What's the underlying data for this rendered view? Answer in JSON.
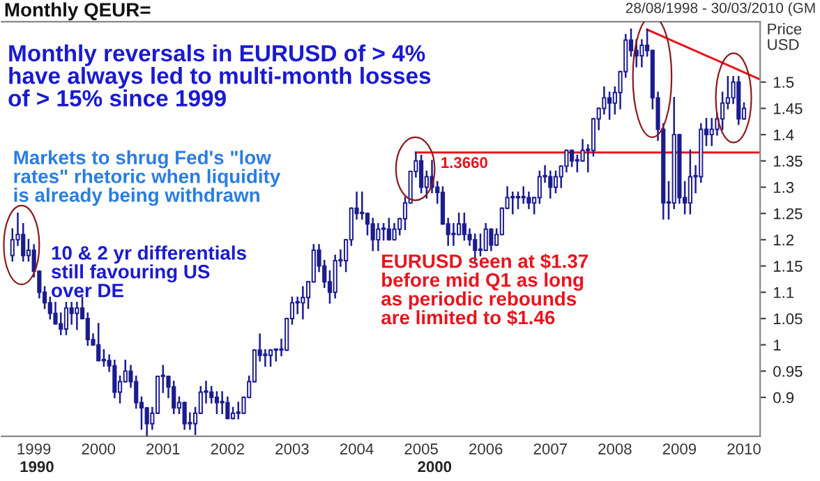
{
  "chart_data": {
    "type": "candlestick",
    "title": "Monthly QEUR=",
    "subtitle": "28/08/1998 - 30/03/2010 (GM",
    "ylabel": "Price\nUSD",
    "annotations": [
      "Monthly reversals in EURUSD of > 4%\nhave always led to multi-month losses\nof > 15% since 1999",
      "Markets to shrug Fed's \"low\nrates\" rhetoric when liquidity\nis already being withdrawn",
      "10 & 2 yr differentials\nstill favouring US\nover DE",
      "EURUSD seen at $1.37\nbefore mid Q1 as long\nas periodic rebounds\nare limited to $1.46",
      {
        "text": "1.3660",
        "x": "2005-09",
        "y": 1.366
      },
      "1990",
      "2000"
    ],
    "color": "#1c1c8f",
    "x": [
      "1998-09",
      "1998-10",
      "1998-11",
      "1998-12",
      "1999-01",
      "1999-02",
      "1999-03",
      "1999-04",
      "1999-05",
      "1999-06",
      "1999-07",
      "1999-08",
      "1999-09",
      "1999-10",
      "1999-11",
      "1999-12",
      "2000-01",
      "2000-02",
      "2000-03",
      "2000-04",
      "2000-05",
      "2000-06",
      "2000-07",
      "2000-08",
      "2000-09",
      "2000-10",
      "2000-11",
      "2000-12",
      "2001-01",
      "2001-02",
      "2001-03",
      "2001-04",
      "2001-05",
      "2001-06",
      "2001-07",
      "2001-08",
      "2001-09",
      "2001-10",
      "2001-11",
      "2001-12",
      "2002-01",
      "2002-02",
      "2002-03",
      "2002-04",
      "2002-05",
      "2002-06",
      "2002-07",
      "2002-08",
      "2002-09",
      "2002-10",
      "2002-11",
      "2002-12",
      "2003-01",
      "2003-02",
      "2003-03",
      "2003-04",
      "2003-05",
      "2003-06",
      "2003-07",
      "2003-08",
      "2003-09",
      "2003-10",
      "2003-11",
      "2003-12",
      "2004-01",
      "2004-02",
      "2004-03",
      "2004-04",
      "2004-05",
      "2004-06",
      "2004-07",
      "2004-08",
      "2004-09",
      "2004-10",
      "2004-11",
      "2004-12",
      "2005-01",
      "2005-02",
      "2005-03",
      "2005-04",
      "2005-05",
      "2005-06",
      "2005-07",
      "2005-08",
      "2005-09",
      "2005-10",
      "2005-11",
      "2005-12",
      "2006-01",
      "2006-02",
      "2006-03",
      "2006-04",
      "2006-05",
      "2006-06",
      "2006-07",
      "2006-08",
      "2006-09",
      "2006-10",
      "2006-11",
      "2006-12",
      "2007-01",
      "2007-02",
      "2007-03",
      "2007-04",
      "2007-05",
      "2007-06",
      "2007-07",
      "2007-08",
      "2007-09",
      "2007-10",
      "2007-11",
      "2007-12",
      "2008-01",
      "2008-02",
      "2008-03",
      "2008-04",
      "2008-05",
      "2008-06",
      "2008-07",
      "2008-08",
      "2008-09",
      "2008-10",
      "2008-11",
      "2008-12",
      "2009-01",
      "2009-02",
      "2009-03",
      "2009-04",
      "2009-05",
      "2009-06",
      "2009-07",
      "2009-08",
      "2009-09",
      "2009-10",
      "2009-11",
      "2009-12",
      "2010-01"
    ],
    "ohlc": [
      [
        1.17,
        1.22,
        1.16,
        1.2
      ],
      [
        1.2,
        1.25,
        1.19,
        1.21
      ],
      [
        1.21,
        1.23,
        1.16,
        1.17
      ],
      [
        1.17,
        1.2,
        1.16,
        1.18
      ],
      [
        1.18,
        1.19,
        1.13,
        1.14
      ],
      [
        1.14,
        1.14,
        1.09,
        1.1
      ],
      [
        1.1,
        1.11,
        1.07,
        1.08
      ],
      [
        1.08,
        1.09,
        1.05,
        1.06
      ],
      [
        1.06,
        1.08,
        1.04,
        1.04
      ],
      [
        1.04,
        1.06,
        1.02,
        1.03
      ],
      [
        1.03,
        1.08,
        1.02,
        1.07
      ],
      [
        1.07,
        1.08,
        1.04,
        1.06
      ],
      [
        1.06,
        1.08,
        1.03,
        1.07
      ],
      [
        1.07,
        1.09,
        1.05,
        1.05
      ],
      [
        1.05,
        1.06,
        1.0,
        1.01
      ],
      [
        1.01,
        1.02,
        1.0,
        1.0
      ],
      [
        1.0,
        1.04,
        0.97,
        0.97
      ],
      [
        0.97,
        0.99,
        0.96,
        0.97
      ],
      [
        0.97,
        0.98,
        0.95,
        0.96
      ],
      [
        0.96,
        0.97,
        0.9,
        0.91
      ],
      [
        0.91,
        0.94,
        0.89,
        0.93
      ],
      [
        0.93,
        0.97,
        0.93,
        0.95
      ],
      [
        0.95,
        0.96,
        0.92,
        0.93
      ],
      [
        0.93,
        0.94,
        0.88,
        0.89
      ],
      [
        0.89,
        0.9,
        0.84,
        0.88
      ],
      [
        0.88,
        0.88,
        0.82,
        0.85
      ],
      [
        0.85,
        0.88,
        0.84,
        0.87
      ],
      [
        0.87,
        0.94,
        0.87,
        0.94
      ],
      [
        0.94,
        0.96,
        0.91,
        0.94
      ],
      [
        0.94,
        0.94,
        0.9,
        0.92
      ],
      [
        0.92,
        0.93,
        0.87,
        0.88
      ],
      [
        0.88,
        0.9,
        0.87,
        0.89
      ],
      [
        0.89,
        0.89,
        0.84,
        0.85
      ],
      [
        0.85,
        0.87,
        0.84,
        0.85
      ],
      [
        0.85,
        0.88,
        0.83,
        0.87
      ],
      [
        0.87,
        0.92,
        0.87,
        0.91
      ],
      [
        0.91,
        0.93,
        0.89,
        0.91
      ],
      [
        0.91,
        0.92,
        0.89,
        0.9
      ],
      [
        0.9,
        0.91,
        0.87,
        0.89
      ],
      [
        0.89,
        0.91,
        0.87,
        0.89
      ],
      [
        0.89,
        0.9,
        0.86,
        0.86
      ],
      [
        0.86,
        0.88,
        0.86,
        0.87
      ],
      [
        0.87,
        0.89,
        0.86,
        0.87
      ],
      [
        0.87,
        0.9,
        0.87,
        0.9
      ],
      [
        0.9,
        0.94,
        0.9,
        0.93
      ],
      [
        0.93,
        0.99,
        0.93,
        0.99
      ],
      [
        0.99,
        1.02,
        0.97,
        0.98
      ],
      [
        0.98,
        0.99,
        0.96,
        0.98
      ],
      [
        0.98,
        0.99,
        0.96,
        0.99
      ],
      [
        0.99,
        0.99,
        0.97,
        0.99
      ],
      [
        0.99,
        1.01,
        0.98,
        0.99
      ],
      [
        0.99,
        1.05,
        0.99,
        1.05
      ],
      [
        1.05,
        1.09,
        1.04,
        1.08
      ],
      [
        1.08,
        1.09,
        1.06,
        1.08
      ],
      [
        1.08,
        1.11,
        1.05,
        1.09
      ],
      [
        1.09,
        1.12,
        1.07,
        1.12
      ],
      [
        1.12,
        1.19,
        1.12,
        1.18
      ],
      [
        1.18,
        1.19,
        1.14,
        1.15
      ],
      [
        1.15,
        1.16,
        1.11,
        1.12
      ],
      [
        1.12,
        1.14,
        1.08,
        1.1
      ],
      [
        1.1,
        1.17,
        1.09,
        1.16
      ],
      [
        1.16,
        1.18,
        1.15,
        1.16
      ],
      [
        1.16,
        1.2,
        1.14,
        1.2
      ],
      [
        1.2,
        1.26,
        1.19,
        1.26
      ],
      [
        1.26,
        1.29,
        1.24,
        1.25
      ],
      [
        1.25,
        1.29,
        1.24,
        1.25
      ],
      [
        1.25,
        1.25,
        1.21,
        1.23
      ],
      [
        1.23,
        1.24,
        1.18,
        1.2
      ],
      [
        1.2,
        1.23,
        1.18,
        1.22
      ],
      [
        1.22,
        1.23,
        1.2,
        1.22
      ],
      [
        1.22,
        1.24,
        1.2,
        1.2
      ],
      [
        1.2,
        1.23,
        1.2,
        1.22
      ],
      [
        1.22,
        1.24,
        1.21,
        1.24
      ],
      [
        1.24,
        1.28,
        1.22,
        1.27
      ],
      [
        1.27,
        1.33,
        1.27,
        1.33
      ],
      [
        1.33,
        1.366,
        1.32,
        1.35
      ],
      [
        1.35,
        1.36,
        1.29,
        1.3
      ],
      [
        1.3,
        1.33,
        1.28,
        1.32
      ],
      [
        1.32,
        1.35,
        1.29,
        1.3
      ],
      [
        1.3,
        1.31,
        1.27,
        1.29
      ],
      [
        1.29,
        1.3,
        1.23,
        1.23
      ],
      [
        1.23,
        1.24,
        1.19,
        1.21
      ],
      [
        1.21,
        1.23,
        1.19,
        1.21
      ],
      [
        1.21,
        1.25,
        1.21,
        1.23
      ],
      [
        1.23,
        1.25,
        1.2,
        1.21
      ],
      [
        1.21,
        1.22,
        1.19,
        1.2
      ],
      [
        1.2,
        1.21,
        1.16,
        1.18
      ],
      [
        1.18,
        1.21,
        1.17,
        1.18
      ],
      [
        1.18,
        1.23,
        1.18,
        1.22
      ],
      [
        1.22,
        1.22,
        1.18,
        1.19
      ],
      [
        1.19,
        1.22,
        1.19,
        1.21
      ],
      [
        1.21,
        1.26,
        1.21,
        1.26
      ],
      [
        1.26,
        1.3,
        1.26,
        1.28
      ],
      [
        1.28,
        1.29,
        1.25,
        1.28
      ],
      [
        1.28,
        1.29,
        1.26,
        1.28
      ],
      [
        1.28,
        1.3,
        1.27,
        1.28
      ],
      [
        1.28,
        1.29,
        1.26,
        1.27
      ],
      [
        1.27,
        1.28,
        1.25,
        1.28
      ],
      [
        1.28,
        1.33,
        1.27,
        1.32
      ],
      [
        1.32,
        1.34,
        1.31,
        1.32
      ],
      [
        1.32,
        1.33,
        1.28,
        1.3
      ],
      [
        1.3,
        1.33,
        1.29,
        1.32
      ],
      [
        1.32,
        1.34,
        1.3,
        1.34
      ],
      [
        1.34,
        1.37,
        1.33,
        1.37
      ],
      [
        1.37,
        1.37,
        1.34,
        1.35
      ],
      [
        1.35,
        1.36,
        1.33,
        1.35
      ],
      [
        1.35,
        1.39,
        1.35,
        1.37
      ],
      [
        1.37,
        1.38,
        1.33,
        1.37
      ],
      [
        1.37,
        1.43,
        1.36,
        1.43
      ],
      [
        1.43,
        1.45,
        1.41,
        1.45
      ],
      [
        1.45,
        1.49,
        1.44,
        1.47
      ],
      [
        1.47,
        1.48,
        1.43,
        1.46
      ],
      [
        1.46,
        1.49,
        1.44,
        1.48
      ],
      [
        1.48,
        1.52,
        1.45,
        1.52
      ],
      [
        1.52,
        1.59,
        1.51,
        1.58
      ],
      [
        1.58,
        1.6,
        1.55,
        1.56
      ],
      [
        1.56,
        1.58,
        1.53,
        1.55
      ],
      [
        1.55,
        1.58,
        1.53,
        1.57
      ],
      [
        1.57,
        1.6,
        1.55,
        1.56
      ],
      [
        1.56,
        1.56,
        1.45,
        1.47
      ],
      [
        1.47,
        1.48,
        1.39,
        1.41
      ],
      [
        1.41,
        1.42,
        1.24,
        1.27
      ],
      [
        1.27,
        1.31,
        1.24,
        1.27
      ],
      [
        1.27,
        1.47,
        1.26,
        1.4
      ],
      [
        1.4,
        1.4,
        1.27,
        1.28
      ],
      [
        1.28,
        1.31,
        1.25,
        1.27
      ],
      [
        1.27,
        1.37,
        1.25,
        1.32
      ],
      [
        1.32,
        1.34,
        1.29,
        1.32
      ],
      [
        1.32,
        1.42,
        1.31,
        1.41
      ],
      [
        1.41,
        1.43,
        1.38,
        1.4
      ],
      [
        1.4,
        1.43,
        1.38,
        1.41
      ],
      [
        1.41,
        1.44,
        1.4,
        1.43
      ],
      [
        1.43,
        1.48,
        1.41,
        1.46
      ],
      [
        1.46,
        1.51,
        1.45,
        1.47
      ],
      [
        1.47,
        1.51,
        1.46,
        1.5
      ],
      [
        1.5,
        1.51,
        1.42,
        1.43
      ],
      [
        1.43,
        1.46,
        1.43,
        1.45
      ]
    ],
    "series": [
      {
        "type": "line",
        "color": "#e8141e",
        "x": [
          "2004-12",
          "2010-04"
        ],
        "values": [
          1.366,
          1.366
        ]
      },
      {
        "type": "line",
        "color": "#e8141e",
        "x": [
          "2008-07",
          "2010-04"
        ],
        "values": [
          1.6,
          1.505
        ]
      }
    ],
    "xlim": [
      "1998-07",
      "2010-04"
    ],
    "ylim": [
      0.826,
      1.615
    ],
    "xticks": [
      {
        "value": "1999-01",
        "label": "1999"
      },
      {
        "value": "2000-01",
        "label": "2000"
      },
      {
        "value": "2001-01",
        "label": "2001"
      },
      {
        "value": "2002-01",
        "label": "2002"
      },
      {
        "value": "2003-01",
        "label": "2003"
      },
      {
        "value": "2004-01",
        "label": "2004"
      },
      {
        "value": "2005-01",
        "label": "2005"
      },
      {
        "value": "2006-01",
        "label": "2006"
      },
      {
        "value": "2007-01",
        "label": "2007"
      },
      {
        "value": "2008-01",
        "label": "2008"
      },
      {
        "value": "2009-01",
        "label": "2009"
      },
      {
        "value": "2010-01",
        "label": "2010"
      }
    ],
    "yticks": [
      0.9,
      0.95,
      1,
      1.05,
      1.1,
      1.15,
      1.2,
      1.25,
      1.3,
      1.35,
      1.4,
      1.45,
      1.5
    ],
    "grid": false,
    "legend": false
  }
}
